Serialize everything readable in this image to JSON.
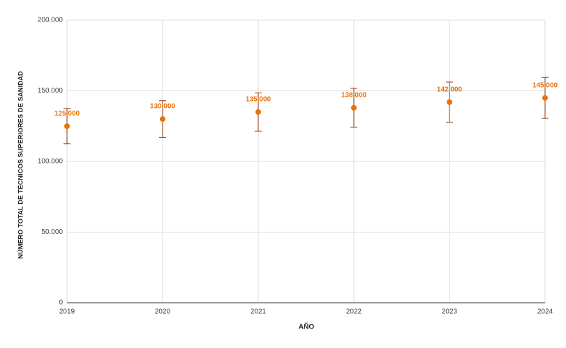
{
  "chart_data": {
    "type": "errorbar",
    "x_label": "AÑO",
    "y_label": "NÚMERO TOTAL DE TÉCNICOS SUPERIORES DE SANIDAD",
    "x": [
      2019,
      2020,
      2021,
      2022,
      2023,
      2024
    ],
    "values": [
      125000,
      130000,
      135000,
      138000,
      142000,
      145000
    ],
    "errors": [
      12500,
      13000,
      13500,
      13800,
      14200,
      14500
    ],
    "value_labels": [
      "125.000",
      "130.000",
      "135.000",
      "138.000",
      "142.000",
      "145.000"
    ],
    "color": "#e8710a",
    "error_color": "#a0522d",
    "xlim": [
      2019,
      2024
    ],
    "xticks": [
      2019,
      2020,
      2021,
      2022,
      2023,
      2024
    ],
    "ylim": [
      0,
      200000
    ],
    "yticks": [
      {
        "value": 0,
        "label": "0"
      },
      {
        "value": 50000,
        "label": "50.000"
      },
      {
        "value": 100000,
        "label": "100.000"
      },
      {
        "value": 150000,
        "label": "150.000"
      },
      {
        "value": 200000,
        "label": "200.000"
      }
    ],
    "grid": true
  }
}
